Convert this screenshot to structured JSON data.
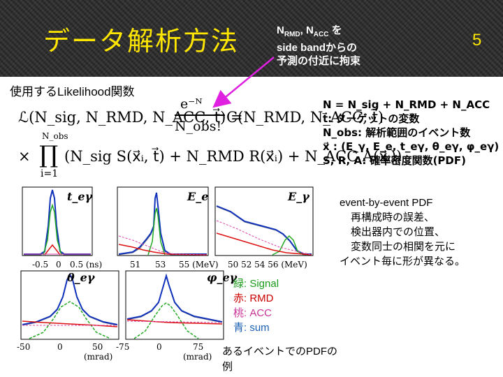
{
  "header": {
    "title": "データ解析方法",
    "note_line1_prefix": "N",
    "note_line1_sub1": "RMD",
    "note_line1_mid": ", N",
    "note_line1_sub2": "ACC",
    "note_line1_suffix": " を",
    "note_line2": "side bandからの",
    "note_line3": "予測の付近に拘束",
    "page_number": "5",
    "arrow_color": "#e020e0"
  },
  "intro": "使用するLikelihood関数",
  "formula": {
    "lhs": "ℒ(N_sig, N_RMD, N_ACC, t⃗) =",
    "numerator": "e⁻ᴺ",
    "denominator": "N_obs!",
    "rhs1": "C(N_RMD, N_ACC, t⃗)",
    "prod_upper": "N_obs",
    "prod_lower": "i=1",
    "times": "×",
    "product_body": "(N_sig S(x⃗ᵢ, t⃗) + N_RMD R(x⃗ᵢ) + N_ACC A(x⃗ᵢ))"
  },
  "definitions": [
    "N = N_sig + N_RMD + N_ACC",
    "t⃗: ターゲットの変数",
    "N_obs: 解析範囲のイベント数",
    "x⃗ : (E_γ, E_e, t_eγ, θ_eγ, φ_eγ)",
    "S, R, A: 確率密度関数(PDF)"
  ],
  "plots": {
    "top": [
      {
        "label": "t_eγ",
        "ticks": [
          "-0.5",
          "0",
          "0.5 (ns)"
        ]
      },
      {
        "label": "E_e",
        "ticks": [
          "51",
          "53",
          "55 (MeV)"
        ]
      },
      {
        "label": "E_γ",
        "ticks": [
          "50 52 54 56 (MeV)"
        ]
      }
    ],
    "bottom": [
      {
        "label": "θ_eγ",
        "ticks": [
          "-50",
          "0",
          "50",
          "(mrad)"
        ]
      },
      {
        "label": "φ_eγ",
        "ticks": [
          "-75",
          "0",
          "75",
          "(mrad)"
        ]
      }
    ]
  },
  "description": {
    "line1": "event-by-event PDF",
    "line2": "再構成時の誤差、",
    "line3": "検出器内での位置、",
    "line4": "変数同士の相関を元に",
    "line5": "イベント毎に形が異なる。"
  },
  "legend": [
    {
      "text": "緑: Signal",
      "color": "#1a9a1a"
    },
    {
      "text": "赤: RMD",
      "color": "#cc0000"
    },
    {
      "text": "桃: ACC",
      "color": "#cc3399"
    },
    {
      "text": "青: sum",
      "color": "#1a5fb4"
    }
  ],
  "caption": {
    "line1": "あるイベントでのPDFの",
    "line2": "例"
  },
  "colors": {
    "title": "#ffe600",
    "signal": "#22aa22",
    "rmd": "#dd1111",
    "acc": "#dd44aa",
    "sum": "#1133bb",
    "data": "#777777"
  }
}
